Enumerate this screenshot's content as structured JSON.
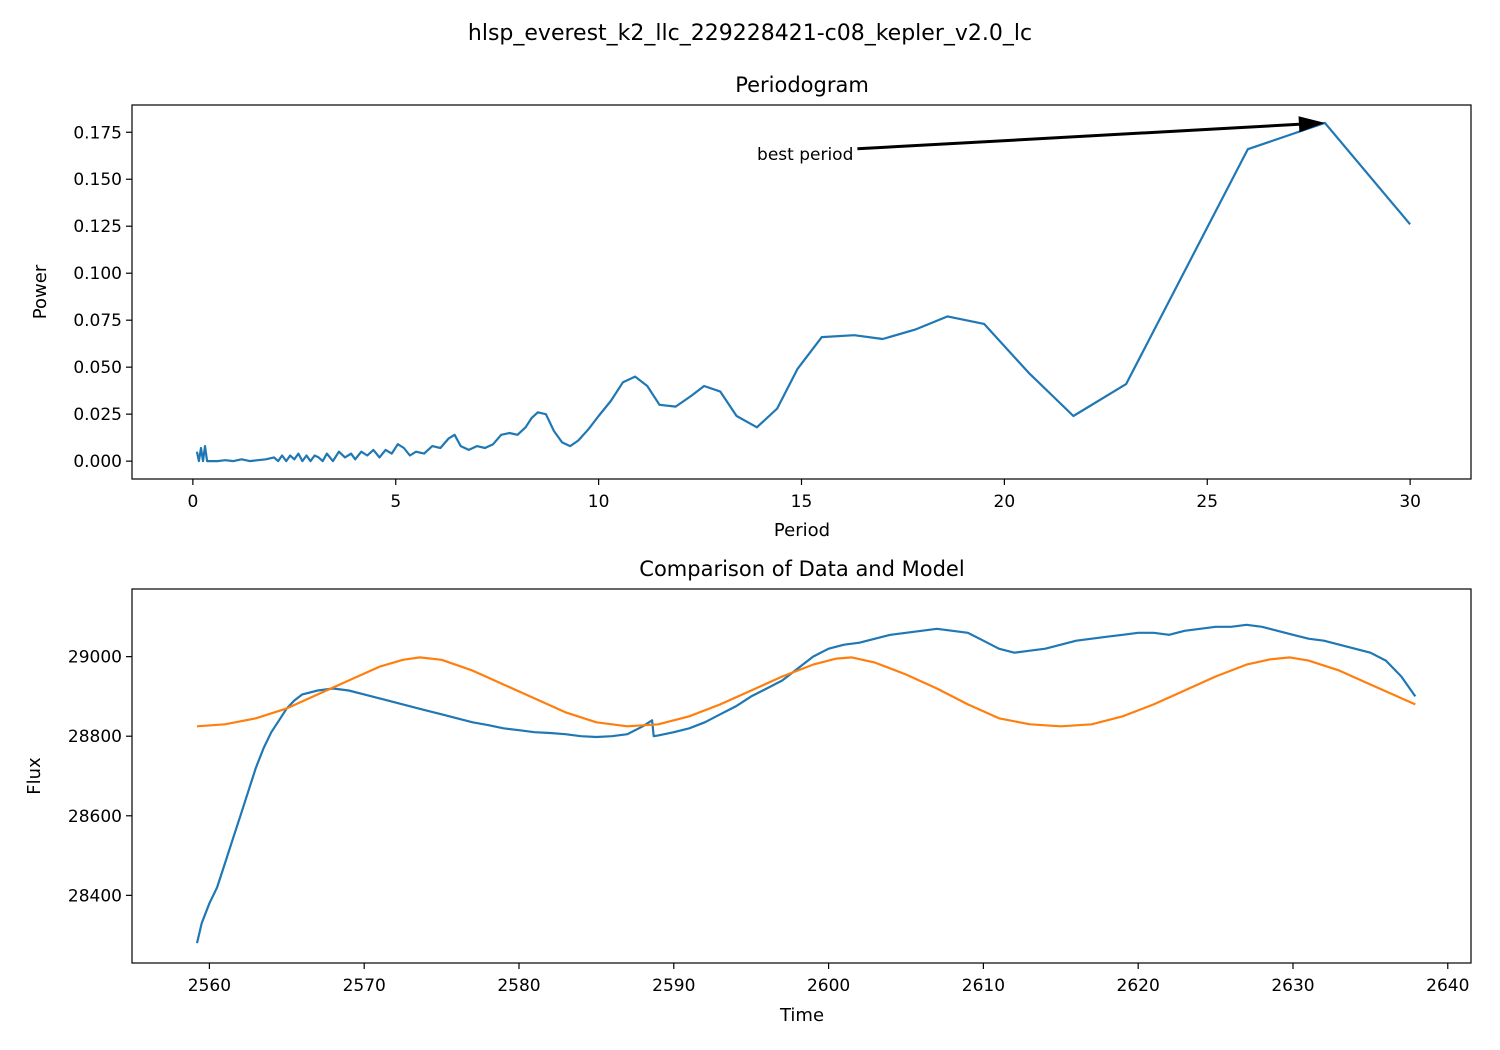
{
  "figure": {
    "suptitle": "hlsp_everest_k2_llc_229228421-c08_kepler_v2.0_lc"
  },
  "colors": {
    "data_line": "#1f77b4",
    "model_line": "#ff7f0e",
    "axes": "#000000",
    "background": "#ffffff"
  },
  "chart_data": [
    {
      "type": "line",
      "title": "Periodogram",
      "xlabel": "Period",
      "ylabel": "Power",
      "xlim": [
        -1.5,
        31.5
      ],
      "ylim": [
        -0.0095,
        0.1895
      ],
      "xticks": [
        0,
        5,
        10,
        15,
        20,
        25,
        30
      ],
      "yticks": [
        0.0,
        0.025,
        0.05,
        0.075,
        0.1,
        0.125,
        0.15,
        0.175
      ],
      "ytick_labels": [
        "0.000",
        "0.025",
        "0.050",
        "0.075",
        "0.100",
        "0.125",
        "0.150",
        "0.175"
      ],
      "grid": false,
      "legend": "none",
      "annotation": {
        "text": "best period",
        "arrow_to": [
          27.9,
          0.18
        ],
        "text_at": [
          14.8,
          0.163
        ]
      },
      "series": [
        {
          "color": "#1f77b4",
          "x": [
            0.1,
            0.15,
            0.2,
            0.25,
            0.3,
            0.35,
            0.45,
            0.6,
            0.8,
            1.0,
            1.2,
            1.4,
            1.6,
            1.8,
            2.0,
            2.1,
            2.2,
            2.3,
            2.4,
            2.5,
            2.6,
            2.7,
            2.8,
            2.9,
            3.0,
            3.1,
            3.2,
            3.3,
            3.45,
            3.6,
            3.75,
            3.9,
            4.0,
            4.15,
            4.3,
            4.45,
            4.6,
            4.75,
            4.9,
            5.05,
            5.2,
            5.35,
            5.5,
            5.7,
            5.9,
            6.1,
            6.3,
            6.45,
            6.6,
            6.8,
            7.0,
            7.2,
            7.4,
            7.6,
            7.8,
            8.0,
            8.2,
            8.35,
            8.5,
            8.7,
            8.9,
            9.1,
            9.3,
            9.5,
            9.75,
            10.0,
            10.3,
            10.6,
            10.9,
            11.2,
            11.5,
            11.9,
            12.3,
            12.6,
            13.0,
            13.4,
            13.9,
            14.4,
            14.9,
            15.5,
            16.3,
            17.0,
            17.8,
            18.6,
            19.5,
            20.6,
            21.7,
            23.0,
            26.0,
            27.9,
            30.0
          ],
          "y": [
            0.005,
            0.0,
            0.007,
            0.0,
            0.008,
            0.0,
            0.0,
            0.0,
            0.0005,
            0.0,
            0.001,
            0.0,
            0.0005,
            0.001,
            0.002,
            0.0,
            0.003,
            0.0,
            0.003,
            0.001,
            0.004,
            0.0,
            0.003,
            0.0,
            0.003,
            0.002,
            0.0,
            0.004,
            0.0,
            0.005,
            0.002,
            0.004,
            0.001,
            0.005,
            0.003,
            0.006,
            0.002,
            0.006,
            0.004,
            0.009,
            0.007,
            0.003,
            0.005,
            0.004,
            0.008,
            0.007,
            0.012,
            0.014,
            0.008,
            0.006,
            0.008,
            0.007,
            0.009,
            0.014,
            0.015,
            0.014,
            0.018,
            0.023,
            0.026,
            0.025,
            0.016,
            0.01,
            0.008,
            0.011,
            0.017,
            0.024,
            0.032,
            0.042,
            0.045,
            0.04,
            0.03,
            0.029,
            0.035,
            0.04,
            0.037,
            0.024,
            0.018,
            0.028,
            0.049,
            0.066,
            0.067,
            0.065,
            0.07,
            0.077,
            0.073,
            0.047,
            0.024,
            0.041,
            0.166,
            0.18,
            0.126
          ]
        }
      ]
    },
    {
      "type": "line",
      "title": "Comparison of Data and Model",
      "xlabel": "Time",
      "ylabel": "Flux",
      "xlim": [
        2555.0,
        2641.5
      ],
      "ylim": [
        28230,
        29170
      ],
      "xticks": [
        2560,
        2570,
        2580,
        2590,
        2600,
        2610,
        2620,
        2630,
        2640
      ],
      "yticks": [
        28400,
        28600,
        28800,
        29000
      ],
      "grid": false,
      "legend": "none",
      "series": [
        {
          "color": "#1f77b4",
          "x": [
            2559.2,
            2559.5,
            2560.0,
            2560.5,
            2561.0,
            2561.5,
            2562.0,
            2562.5,
            2563.0,
            2563.5,
            2564.0,
            2564.5,
            2565.0,
            2565.5,
            2566.0,
            2567.0,
            2568.0,
            2569.0,
            2570.0,
            2571.0,
            2572.0,
            2573.0,
            2574.0,
            2575.0,
            2576.0,
            2577.0,
            2578.0,
            2579.0,
            2580.0,
            2581.0,
            2582.0,
            2583.0,
            2584.0,
            2585.0,
            2586.0,
            2587.0,
            2588.0,
            2588.6,
            2588.7,
            2589.0,
            2590.0,
            2591.0,
            2592.0,
            2593.0,
            2594.0,
            2595.0,
            2596.0,
            2597.0,
            2598.0,
            2599.0,
            2600.0,
            2601.0,
            2602.0,
            2603.0,
            2604.0,
            2605.0,
            2606.0,
            2607.0,
            2608.0,
            2609.0,
            2610.0,
            2611.0,
            2612.0,
            2613.0,
            2614.0,
            2615.0,
            2616.0,
            2617.0,
            2618.0,
            2619.0,
            2620.0,
            2621.0,
            2622.0,
            2623.0,
            2624.0,
            2625.0,
            2626.0,
            2627.0,
            2628.0,
            2629.0,
            2630.0,
            2631.0,
            2632.0,
            2633.0,
            2634.0,
            2635.0,
            2636.0,
            2637.0,
            2637.9
          ],
          "y": [
            28280,
            28330,
            28380,
            28420,
            28480,
            28540,
            28600,
            28660,
            28720,
            28770,
            28810,
            28840,
            28870,
            28890,
            28905,
            28915,
            28920,
            28915,
            28905,
            28895,
            28885,
            28875,
            28865,
            28855,
            28845,
            28835,
            28828,
            28820,
            28815,
            28810,
            28808,
            28805,
            28800,
            28798,
            28800,
            28805,
            28825,
            28840,
            28800,
            28802,
            28810,
            28820,
            28835,
            28855,
            28875,
            28900,
            28920,
            28940,
            28970,
            29000,
            29020,
            29030,
            29035,
            29045,
            29055,
            29060,
            29065,
            29070,
            29065,
            29060,
            29040,
            29020,
            29010,
            29015,
            29020,
            29030,
            29040,
            29045,
            29050,
            29055,
            29060,
            29060,
            29055,
            29065,
            29070,
            29075,
            29075,
            29080,
            29075,
            29065,
            29055,
            29045,
            29040,
            29030,
            29020,
            29010,
            28990,
            28950,
            28900
          ]
        },
        {
          "color": "#ff7f0e",
          "x": [
            2559.2,
            2561.0,
            2563.0,
            2565.0,
            2567.0,
            2569.0,
            2571.0,
            2572.5,
            2573.6,
            2575.0,
            2577.0,
            2579.0,
            2581.0,
            2583.0,
            2585.0,
            2587.0,
            2589.0,
            2591.0,
            2593.0,
            2595.0,
            2597.0,
            2599.0,
            2600.5,
            2601.5,
            2603.0,
            2605.0,
            2607.0,
            2609.0,
            2611.0,
            2613.0,
            2615.0,
            2617.0,
            2619.0,
            2621.0,
            2623.0,
            2625.0,
            2627.0,
            2628.5,
            2629.8,
            2631.0,
            2633.0,
            2635.0,
            2637.9
          ],
          "y": [
            28825,
            28830,
            28845,
            28870,
            28905,
            28940,
            28975,
            28992,
            28998,
            28992,
            28965,
            28930,
            28895,
            28860,
            28835,
            28825,
            28830,
            28850,
            28880,
            28915,
            28950,
            28980,
            28995,
            28998,
            28985,
            28955,
            28920,
            28880,
            28845,
            28830,
            28825,
            28830,
            28850,
            28880,
            28915,
            28950,
            28980,
            28993,
            28998,
            28990,
            28965,
            28930,
            28880
          ]
        }
      ]
    }
  ]
}
